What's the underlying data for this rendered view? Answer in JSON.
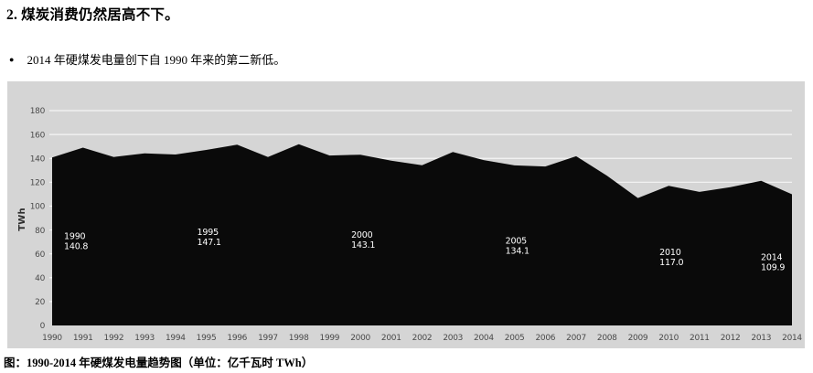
{
  "document": {
    "heading": "2. 煤炭消费仍然居高不下。",
    "bullet_marker": "●",
    "bullet_text": "2014 年硬煤发电量创下自 1990 年来的第二新低。",
    "caption": "图：1990-2014 年硬煤发电量趋势图（单位：亿千瓦时 TWh）"
  },
  "chart_data": {
    "type": "area",
    "title": "",
    "xlabel": "",
    "ylabel": "TWh",
    "x": [
      1990,
      1991,
      1992,
      1993,
      1994,
      1995,
      1996,
      1997,
      1998,
      1999,
      2000,
      2001,
      2002,
      2003,
      2004,
      2005,
      2006,
      2007,
      2008,
      2009,
      2010,
      2011,
      2012,
      2013,
      2014
    ],
    "values": [
      140.8,
      149.0,
      141.2,
      144.2,
      143.2,
      147.1,
      151.5,
      141.2,
      151.8,
      142.4,
      143.1,
      138.0,
      134.3,
      145.3,
      138.6,
      134.1,
      133.2,
      141.8,
      125.5,
      106.8,
      117.0,
      111.9,
      115.9,
      121.2,
      109.9
    ],
    "ylim": [
      0,
      180
    ],
    "yticks": [
      0,
      20,
      40,
      60,
      80,
      100,
      120,
      140,
      160,
      180
    ],
    "grid": true,
    "legend": "none",
    "annotations": [
      {
        "year": 1990,
        "value": 140.8,
        "label": "140.8"
      },
      {
        "year": 1995,
        "value": 147.1,
        "label": "147.1"
      },
      {
        "year": 2000,
        "value": 143.1,
        "label": "143.1"
      },
      {
        "year": 2005,
        "value": 134.1,
        "label": "134.1"
      },
      {
        "year": 2010,
        "value": 117.0,
        "label": "117.0"
      },
      {
        "year": 2014,
        "value": 109.9,
        "label": "109.9"
      }
    ],
    "colors": {
      "area": "#0a0a0a",
      "panel_bg": "#d5d5d5",
      "gridline": "#f5f5f5",
      "tick_text": "#4a4a4a",
      "annotation_text": "#ffffff",
      "page_bg": "#ffffff"
    }
  }
}
